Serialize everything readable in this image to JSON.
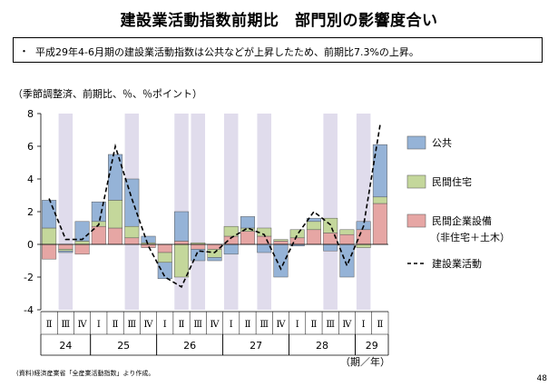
{
  "title": "建設業活動指数前期比　部門別の影響度合い",
  "summary": {
    "bullet": "・",
    "text": "平成29年4-6月期の建設業活動指数は公共などが上昇したため、前期比7.3%の上昇。"
  },
  "unit_label": "（季節調整済、前期比、％、％ポイント）",
  "source_note": "(資料)経済産業省「全産業活動指数」より作成。",
  "page_number": "48",
  "axis_unit_label": "（期／年）",
  "colors": {
    "public": "#95b3d7",
    "housing": "#c4d79b",
    "private": "#e6a6a4",
    "shade": "#e0dcec",
    "line": "#000000"
  },
  "chart_data": {
    "type": "bar",
    "stacked": true,
    "categories": [
      "Ⅱ",
      "Ⅲ",
      "Ⅳ",
      "Ⅰ",
      "Ⅱ",
      "Ⅲ",
      "Ⅳ",
      "Ⅰ",
      "Ⅱ",
      "Ⅲ",
      "Ⅳ",
      "Ⅰ",
      "Ⅱ",
      "Ⅲ",
      "Ⅳ",
      "Ⅰ",
      "Ⅱ",
      "Ⅲ",
      "Ⅳ",
      "Ⅰ",
      "Ⅱ"
    ],
    "year_labels": [
      {
        "label": "24",
        "start": 0,
        "end": 2
      },
      {
        "label": "25",
        "start": 3,
        "end": 6
      },
      {
        "label": "26",
        "start": 7,
        "end": 10
      },
      {
        "label": "27",
        "start": 11,
        "end": 14
      },
      {
        "label": "28",
        "start": 15,
        "end": 18
      },
      {
        "label": "29",
        "start": 19,
        "end": 20
      }
    ],
    "shaded_categories": [
      1,
      5,
      8,
      9,
      11,
      13,
      17,
      19
    ],
    "series": [
      {
        "name": "民間企業設備",
        "name_sub": "（非住宅＋土木）",
        "color_key": "private",
        "values": [
          -0.9,
          -0.3,
          -0.6,
          1.1,
          1.0,
          0.4,
          -0.2,
          -0.5,
          0.2,
          -0.3,
          -0.3,
          0.5,
          0.8,
          0.5,
          0.2,
          0.4,
          0.9,
          0.7,
          0.6,
          0.9,
          2.5
        ]
      },
      {
        "name": "民間住宅",
        "color_key": "housing",
        "values": [
          1.0,
          -0.1,
          0.2,
          0.3,
          1.7,
          0.7,
          0.1,
          -0.6,
          -2.0,
          0.1,
          -0.5,
          0.6,
          0.2,
          0.5,
          0.1,
          0.5,
          0.5,
          0.9,
          0.3,
          -0.2,
          0.4
        ]
      },
      {
        "name": "公共",
        "color_key": "public",
        "values": [
          1.7,
          -0.1,
          1.2,
          1.2,
          2.8,
          2.9,
          0.4,
          -1.0,
          1.8,
          -0.7,
          -0.2,
          -0.6,
          0.7,
          -0.5,
          -2.0,
          -0.1,
          0.2,
          -0.4,
          -2.0,
          0.5,
          3.2
        ]
      }
    ],
    "line": {
      "name": "建設業活動",
      "values": [
        2.8,
        0.3,
        0.3,
        1.2,
        6.0,
        2.8,
        -0.1,
        -2.0,
        -2.6,
        -0.4,
        -0.5,
        0.4,
        1.0,
        0.6,
        -1.5,
        0.6,
        2.0,
        1.2,
        -1.3,
        1.1,
        7.3
      ]
    },
    "ylim": [
      -4,
      8
    ],
    "yticks": [
      -4,
      -2,
      0,
      2,
      4,
      6,
      8
    ],
    "legend_position": "right",
    "grid": false
  }
}
